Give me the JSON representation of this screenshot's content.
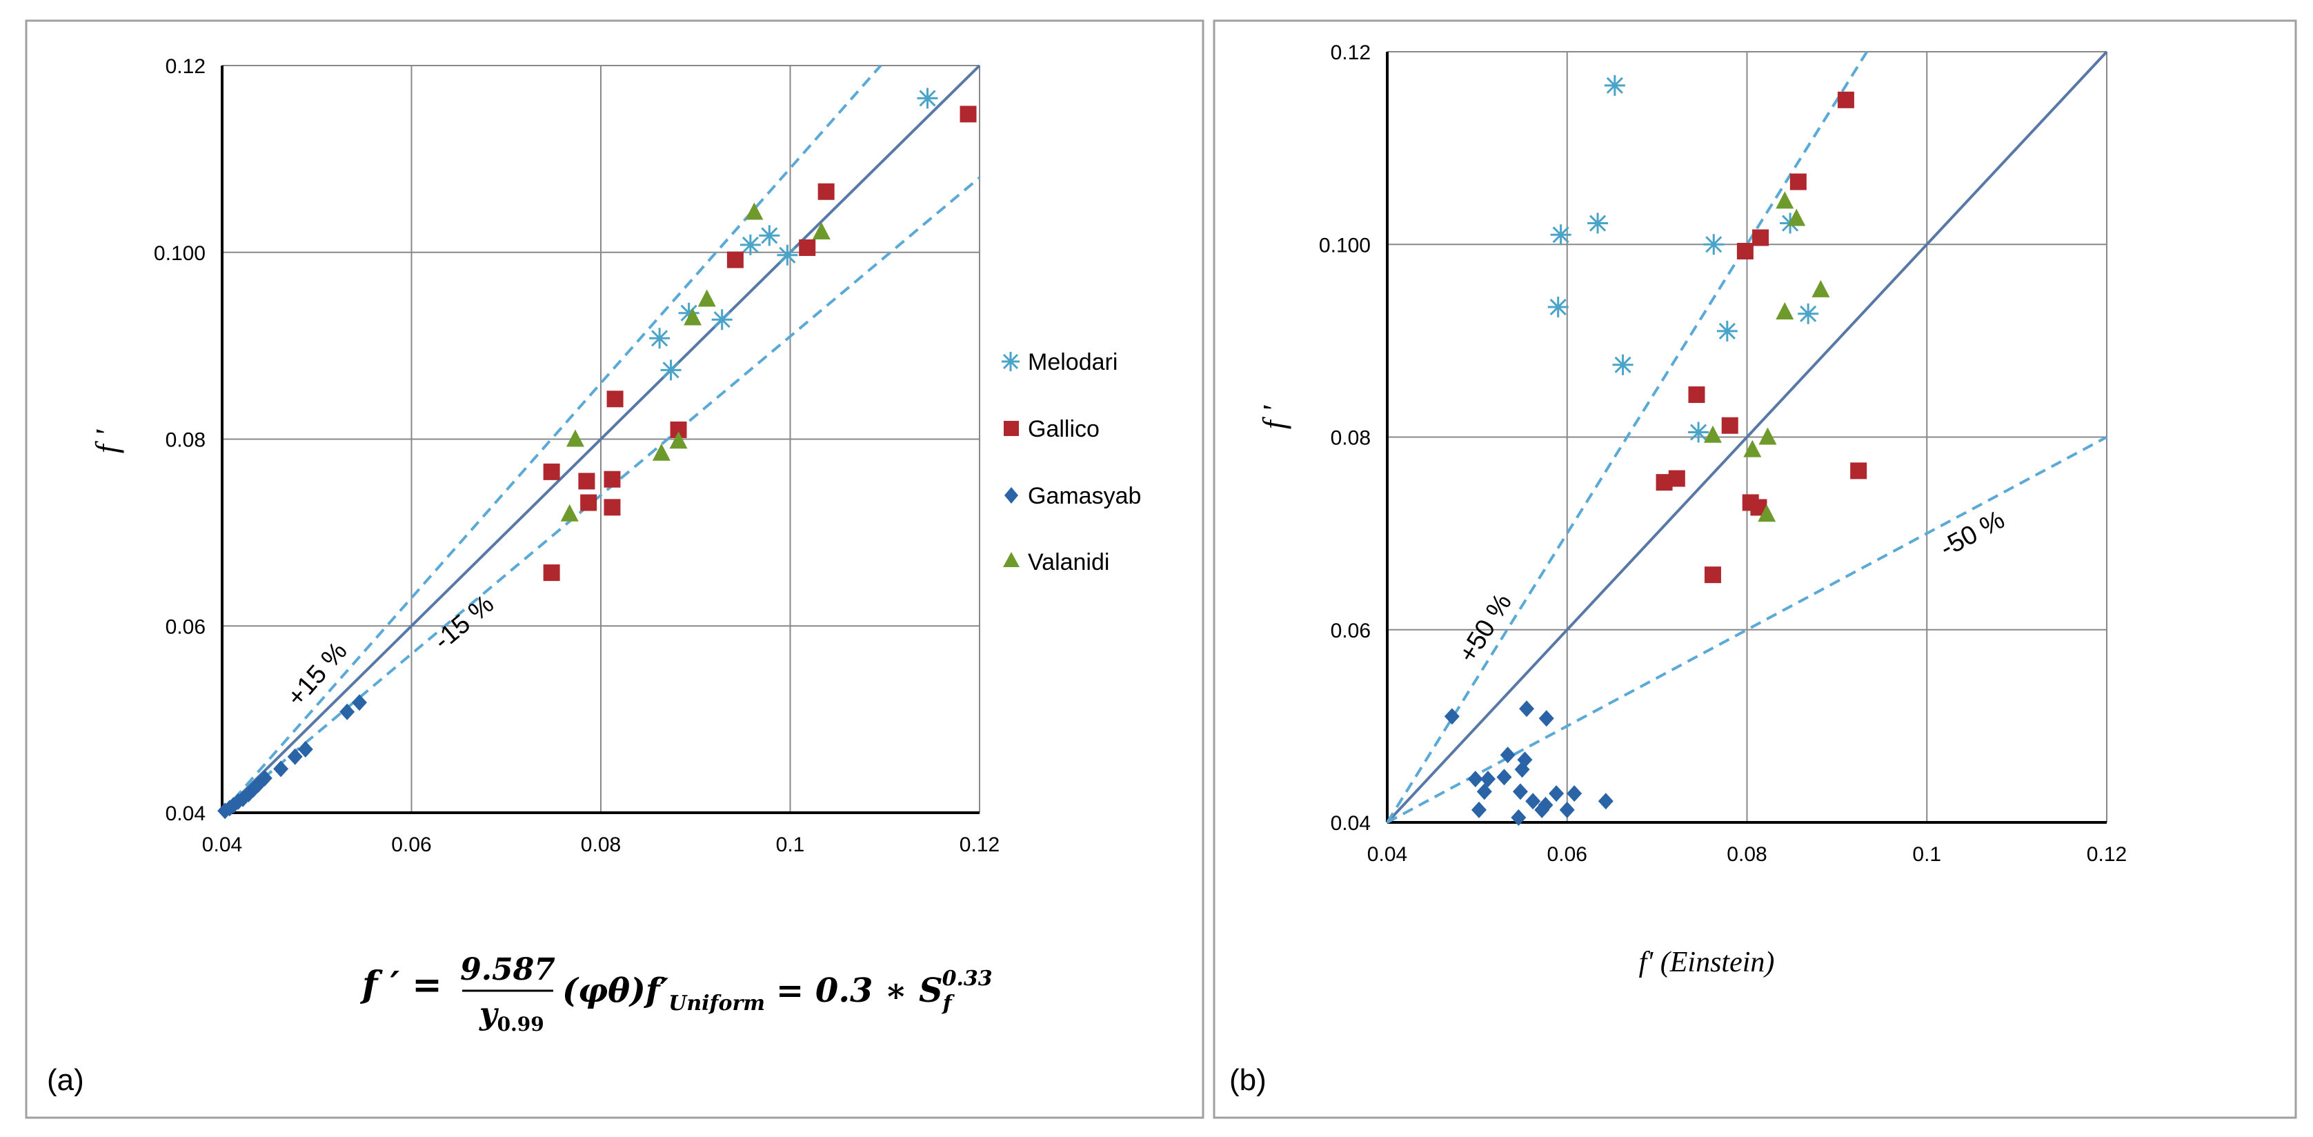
{
  "colors": {
    "melodari": "#4aa3c9",
    "gallico": "#b0282d",
    "gamasyab": "#2a64a6",
    "valanidi": "#6e9a2c",
    "band": "#5aa9d6",
    "diag": "#5878a8",
    "grid": "#888888",
    "frame": "#a0a0a0"
  },
  "chart_data": [
    {
      "panel_label": "(a)",
      "type": "scatter",
      "ylabel": "f '",
      "xlabel": "",
      "xlim": [
        0.04,
        0.12
      ],
      "ylim": [
        0.04,
        0.12
      ],
      "x_ticks": [
        "0.04",
        "0.06",
        "0.08",
        "0.1",
        "0.12"
      ],
      "y_ticks": [
        "0.04",
        "0.06",
        "0.08",
        "0.100",
        "0.12"
      ],
      "bands": [
        {
          "label": "+15 %",
          "slope": 1.15
        },
        {
          "label": "-15 %",
          "slope": 0.85
        }
      ],
      "legend": [
        "Melodari",
        "Gallico",
        "Gamasyab",
        "Valanidi"
      ],
      "formula": {
        "lhs": "f ′ =",
        "num": "9.587",
        "den": "y",
        "den_sub": "0.99",
        "mid": "(φθ)f′",
        "mid_sub": "Uniform",
        "rhs": "= 0.3 ∗ S",
        "rhs_sub": "f",
        "rhs_sup": "0.33"
      },
      "series": [
        {
          "name": "Melodari",
          "points": [
            [
              0.1145,
              0.1165
            ],
            [
              0.0997,
              0.0997
            ],
            [
              0.0958,
              0.1008
            ],
            [
              0.0978,
              0.1018
            ],
            [
              0.0862,
              0.0908
            ],
            [
              0.0874,
              0.0874
            ],
            [
              0.0893,
              0.0935
            ],
            [
              0.0928,
              0.0928
            ]
          ]
        },
        {
          "name": "Gallico",
          "points": [
            [
              0.1188,
              0.1148
            ],
            [
              0.1038,
              0.1065
            ],
            [
              0.1018,
              0.1005
            ],
            [
              0.0942,
              0.0992
            ],
            [
              0.0815,
              0.0843
            ],
            [
              0.0882,
              0.081
            ],
            [
              0.0748,
              0.0765
            ],
            [
              0.0785,
              0.0755
            ],
            [
              0.0812,
              0.0757
            ],
            [
              0.0787,
              0.0732
            ],
            [
              0.0812,
              0.0727
            ],
            [
              0.0748,
              0.0657
            ]
          ]
        },
        {
          "name": "Gamasyab",
          "points": [
            [
              0.0545,
              0.0518
            ],
            [
              0.0532,
              0.0508
            ],
            [
              0.0488,
              0.0468
            ],
            [
              0.0477,
              0.046
            ],
            [
              0.0462,
              0.0447
            ],
            [
              0.0445,
              0.0437
            ],
            [
              0.0438,
              0.043
            ],
            [
              0.0433,
              0.0425
            ],
            [
              0.0428,
              0.042
            ],
            [
              0.0422,
              0.0415
            ],
            [
              0.0417,
              0.0412
            ],
            [
              0.0412,
              0.0408
            ],
            [
              0.0408,
              0.0405
            ],
            [
              0.0403,
              0.0402
            ]
          ]
        },
        {
          "name": "Valanidi",
          "points": [
            [
              0.0962,
              0.1043
            ],
            [
              0.1033,
              0.1022
            ],
            [
              0.0897,
              0.093
            ],
            [
              0.0912,
              0.095
            ],
            [
              0.0773,
              0.08
            ],
            [
              0.0882,
              0.0798
            ],
            [
              0.0864,
              0.0785
            ],
            [
              0.0767,
              0.072
            ]
          ]
        }
      ]
    },
    {
      "panel_label": "(b)",
      "type": "scatter",
      "ylabel": "f '",
      "xlabel": "f' (Einstein)",
      "xlim": [
        0.04,
        0.12
      ],
      "ylim": [
        0.04,
        0.12
      ],
      "x_ticks": [
        "0.04",
        "0.06",
        "0.08",
        "0.1",
        "0.12"
      ],
      "y_ticks": [
        "0.04",
        "0.06",
        "0.08",
        "0.100",
        "0.12"
      ],
      "bands": [
        {
          "label": "+50 %",
          "slope": 1.5
        },
        {
          "label": "-50 %",
          "slope": 0.5
        }
      ],
      "series": [
        {
          "name": "Melodari",
          "points": [
            [
              0.0653,
              0.1165
            ],
            [
              0.0593,
              0.101
            ],
            [
              0.0634,
              0.1022
            ],
            [
              0.059,
              0.0935
            ],
            [
              0.0662,
              0.0875
            ],
            [
              0.0763,
              0.1
            ],
            [
              0.0778,
              0.091
            ],
            [
              0.0848,
              0.1022
            ],
            [
              0.0868,
              0.0928
            ],
            [
              0.0746,
              0.0805
            ]
          ]
        },
        {
          "name": "Gallico",
          "points": [
            [
              0.091,
              0.115
            ],
            [
              0.0857,
              0.1065
            ],
            [
              0.0815,
              0.1007
            ],
            [
              0.0798,
              0.0993
            ],
            [
              0.0744,
              0.0844
            ],
            [
              0.0781,
              0.0812
            ],
            [
              0.0708,
              0.0753
            ],
            [
              0.0722,
              0.0757
            ],
            [
              0.0804,
              0.0732
            ],
            [
              0.0813,
              0.0727
            ],
            [
              0.0762,
              0.0657
            ],
            [
              0.0924,
              0.0765
            ]
          ]
        },
        {
          "name": "Gamasyab",
          "points": [
            [
              0.0472,
              0.051
            ],
            [
              0.0555,
              0.0518
            ],
            [
              0.0577,
              0.0508
            ],
            [
              0.0534,
              0.047
            ],
            [
              0.0553,
              0.0465
            ],
            [
              0.055,
              0.0455
            ],
            [
              0.0498,
              0.0445
            ],
            [
              0.0512,
              0.0445
            ],
            [
              0.053,
              0.0447
            ],
            [
              0.0508,
              0.0432
            ],
            [
              0.0548,
              0.0432
            ],
            [
              0.0588,
              0.043
            ],
            [
              0.0608,
              0.043
            ],
            [
              0.0562,
              0.0422
            ],
            [
              0.0576,
              0.0418
            ],
            [
              0.0643,
              0.0422
            ],
            [
              0.0502,
              0.0413
            ],
            [
              0.0572,
              0.0413
            ],
            [
              0.06,
              0.0413
            ],
            [
              0.0546,
              0.0405
            ]
          ]
        },
        {
          "name": "Valanidi",
          "points": [
            [
              0.0842,
              0.1045
            ],
            [
              0.0855,
              0.1027
            ],
            [
              0.0842,
              0.093
            ],
            [
              0.0882,
              0.0953
            ],
            [
              0.0762,
              0.0802
            ],
            [
              0.0823,
              0.08
            ],
            [
              0.0806,
              0.0787
            ],
            [
              0.0822,
              0.072
            ]
          ]
        }
      ]
    }
  ]
}
